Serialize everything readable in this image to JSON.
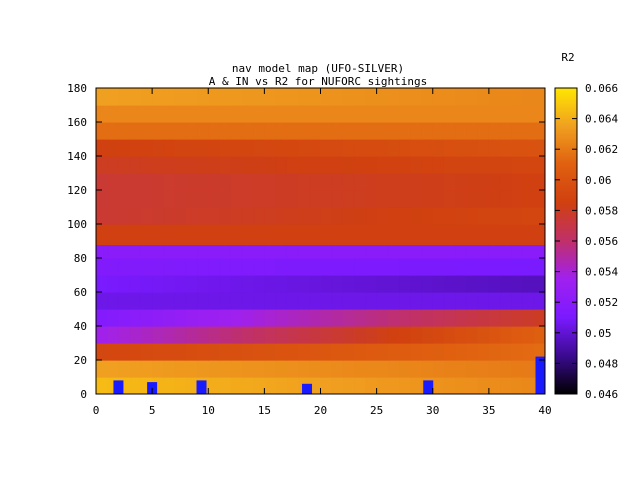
{
  "chart_data": {
    "type": "heatmap",
    "title": "nav model map (UFO-SILVER)",
    "subtitle": "A & IN vs R2 for NUFORC sightings",
    "xlabel": "",
    "ylabel": "",
    "colorbar_label": "R2",
    "xlim": [
      0,
      40
    ],
    "ylim": [
      0,
      180
    ],
    "xticks": [
      "0",
      "5",
      "10",
      "15",
      "20",
      "25",
      "30",
      "35",
      "40"
    ],
    "yticks": [
      "0",
      "20",
      "40",
      "60",
      "80",
      "100",
      "120",
      "140",
      "160",
      "180"
    ],
    "colorbar_range": [
      0.046,
      0.066
    ],
    "colorbar_ticks": [
      "0.046",
      "0.048",
      "0.05",
      "0.052",
      "0.054",
      "0.056",
      "0.058",
      "0.06",
      "0.062",
      "0.064",
      "0.066"
    ],
    "colormap": [
      "#000000",
      "#3b0a90",
      "#7a1aff",
      "#a020f0",
      "#c0306a",
      "#d04010",
      "#e06010",
      "#f0a020",
      "#ffe600"
    ],
    "y_bands": [
      {
        "y0": 0,
        "y1": 10,
        "left": 0.0645,
        "right": 0.0625
      },
      {
        "y0": 10,
        "y1": 20,
        "left": 0.0635,
        "right": 0.062
      },
      {
        "y0": 20,
        "y1": 30,
        "left": 0.059,
        "right": 0.0615
      },
      {
        "y0": 30,
        "y1": 40,
        "left": 0.0535,
        "right": 0.061
      },
      {
        "y0": 40,
        "y1": 50,
        "left": 0.0515,
        "right": 0.058
      },
      {
        "y0": 50,
        "y1": 60,
        "left": 0.0505,
        "right": 0.0505
      },
      {
        "y0": 60,
        "y1": 70,
        "left": 0.051,
        "right": 0.0495
      },
      {
        "y0": 70,
        "y1": 80,
        "left": 0.0515,
        "right": 0.051
      },
      {
        "y0": 80,
        "y1": 88,
        "left": 0.052,
        "right": 0.052
      },
      {
        "y0": 88,
        "y1": 100,
        "left": 0.0585,
        "right": 0.0585
      },
      {
        "y0": 100,
        "y1": 110,
        "left": 0.0575,
        "right": 0.059
      },
      {
        "y0": 110,
        "y1": 120,
        "left": 0.0575,
        "right": 0.0585
      },
      {
        "y0": 120,
        "y1": 130,
        "left": 0.0575,
        "right": 0.0585
      },
      {
        "y0": 130,
        "y1": 140,
        "left": 0.058,
        "right": 0.059
      },
      {
        "y0": 140,
        "y1": 150,
        "left": 0.0585,
        "right": 0.06
      },
      {
        "y0": 150,
        "y1": 160,
        "left": 0.0615,
        "right": 0.0615
      },
      {
        "y0": 160,
        "y1": 170,
        "left": 0.0625,
        "right": 0.0625
      },
      {
        "y0": 170,
        "y1": 180,
        "left": 0.0635,
        "right": 0.0625
      }
    ],
    "markers": [
      {
        "x": 2,
        "y0": 0,
        "y1": 8
      },
      {
        "x": 5,
        "y0": 0,
        "y1": 7
      },
      {
        "x": 9.4,
        "y0": 0,
        "y1": 8
      },
      {
        "x": 18.8,
        "y0": 0,
        "y1": 6
      },
      {
        "x": 29.6,
        "y0": 0,
        "y1": 8
      },
      {
        "x": 39.6,
        "y0": 0,
        "y1": 22
      }
    ],
    "marker_color": "#1a1aff"
  }
}
